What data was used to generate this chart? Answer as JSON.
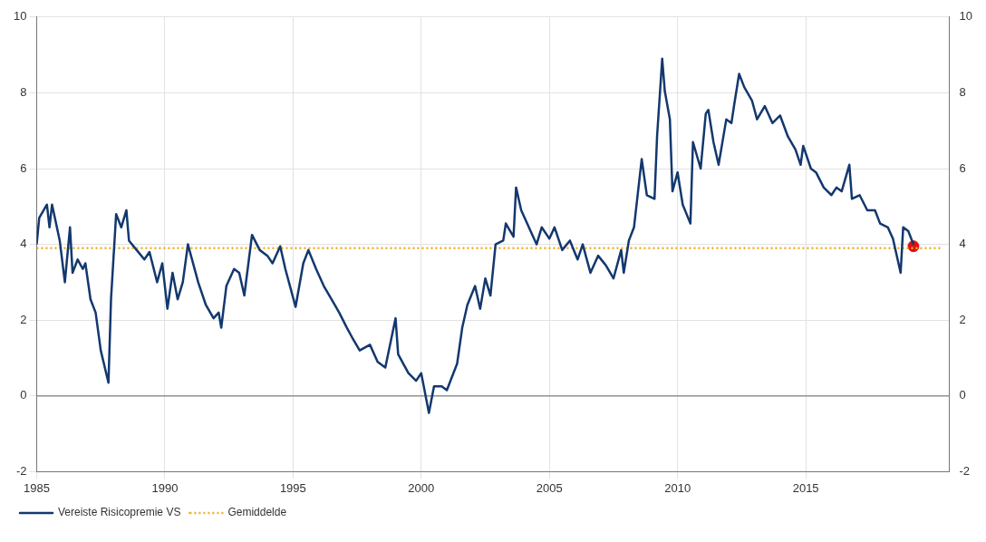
{
  "chart_data": {
    "type": "line",
    "xlim": [
      1985,
      2020.6
    ],
    "xticks": [
      1985,
      1990,
      1995,
      2000,
      2005,
      2010,
      2015
    ],
    "ylim": [
      -2,
      10
    ],
    "yticks": [
      -2,
      0,
      2,
      4,
      6,
      8,
      10
    ],
    "y2lim": [
      -2,
      10
    ],
    "y2ticks": [
      -2,
      0,
      2,
      4,
      6,
      8,
      10
    ],
    "grid": true,
    "legend": "bottom left",
    "ref_lines": [
      {
        "axis": "y",
        "value": 0,
        "color": "#808080"
      }
    ],
    "series": [
      {
        "name": "Vereiste Risicopremie VS",
        "color": "#13386e",
        "line_style": "solid",
        "marker": "none",
        "x": [
          1985.0,
          1985.1,
          1985.4,
          1985.5,
          1985.6,
          1985.9,
          1986.1,
          1986.3,
          1986.4,
          1986.6,
          1986.8,
          1986.9,
          1987.1,
          1987.3,
          1987.5,
          1987.8,
          1987.9,
          1988.1,
          1988.3,
          1988.5,
          1988.6,
          1988.9,
          1989.2,
          1989.4,
          1989.7,
          1989.9,
          1990.1,
          1990.3,
          1990.5,
          1990.7,
          1990.9,
          1991.2,
          1991.3,
          1991.6,
          1991.9,
          1992.1,
          1992.2,
          1992.4,
          1992.7,
          1992.9,
          1993.1,
          1993.4,
          1993.7,
          1994.0,
          1994.2,
          1994.5,
          1994.7,
          1995.1,
          1995.4,
          1995.6,
          1995.9,
          1996.2,
          1996.5,
          1996.8,
          1997.1,
          1997.3,
          1997.6,
          1998.0,
          1998.3,
          1998.6,
          1999.0,
          1999.1,
          1999.5,
          1999.8,
          2000.0,
          2000.3,
          2000.5,
          2000.8,
          2001.0,
          2001.4,
          2001.6,
          2001.8,
          2002.1,
          2002.3,
          2002.5,
          2002.7,
          2002.9,
          2003.2,
          2003.3,
          2003.6,
          2003.7,
          2003.9,
          2004.2,
          2004.5,
          2004.7,
          2005.0,
          2005.2,
          2005.5,
          2005.8,
          2006.1,
          2006.3,
          2006.6,
          2006.9,
          2007.2,
          2007.5,
          2007.8,
          2007.9,
          2008.1,
          2008.3,
          2008.6,
          2008.8,
          2009.1,
          2009.2,
          2009.4,
          2009.5,
          2009.7,
          2009.8,
          2010.0,
          2010.2,
          2010.5,
          2010.6,
          2010.9,
          2011.1,
          2011.2,
          2011.4,
          2011.6,
          2011.9,
          2012.1,
          2012.2,
          2012.4,
          2012.6,
          2012.9,
          2013.1,
          2013.4,
          2013.7,
          2014.0,
          2014.3,
          2014.6,
          2014.8,
          2014.9,
          2015.2,
          2015.4,
          2015.7,
          2016.0,
          2016.2,
          2016.4,
          2016.7,
          2016.8,
          2017.1,
          2017.4,
          2017.7,
          2017.9,
          2018.2,
          2018.4,
          2018.7,
          2018.8,
          2019.0,
          2019.2
        ],
        "values": [
          4.0,
          4.7,
          5.05,
          4.45,
          5.05,
          4.1,
          3.0,
          4.45,
          3.25,
          3.6,
          3.35,
          3.5,
          2.55,
          2.2,
          1.2,
          0.35,
          2.55,
          4.8,
          4.45,
          4.9,
          4.1,
          3.85,
          3.6,
          3.8,
          3.0,
          3.5,
          2.3,
          3.25,
          2.55,
          3.0,
          4.0,
          3.25,
          3.0,
          2.4,
          2.05,
          2.2,
          1.8,
          2.9,
          3.35,
          3.25,
          2.65,
          4.25,
          3.85,
          3.7,
          3.5,
          3.95,
          3.35,
          2.35,
          3.5,
          3.85,
          3.35,
          2.9,
          2.55,
          2.2,
          1.8,
          1.55,
          1.2,
          1.35,
          0.9,
          0.75,
          2.05,
          1.1,
          0.6,
          0.4,
          0.6,
          -0.45,
          0.25,
          0.25,
          0.15,
          0.85,
          1.8,
          2.4,
          2.9,
          2.3,
          3.1,
          2.65,
          4.0,
          4.1,
          4.55,
          4.2,
          5.5,
          4.9,
          4.45,
          4.0,
          4.45,
          4.15,
          4.45,
          3.85,
          4.1,
          3.6,
          4.0,
          3.25,
          3.7,
          3.45,
          3.1,
          3.85,
          3.25,
          4.1,
          4.45,
          6.25,
          5.3,
          5.2,
          6.85,
          8.9,
          8.05,
          7.3,
          5.4,
          5.9,
          5.05,
          4.55,
          6.7,
          6.0,
          7.45,
          7.55,
          6.7,
          6.1,
          7.3,
          7.2,
          7.65,
          8.5,
          8.15,
          7.8,
          7.3,
          7.65,
          7.2,
          7.4,
          6.85,
          6.5,
          6.1,
          6.6,
          6.0,
          5.9,
          5.5,
          5.3,
          5.5,
          5.4,
          6.1,
          5.2,
          5.3,
          4.9,
          4.9,
          4.55,
          4.45,
          4.15,
          3.25,
          4.45,
          4.35,
          4.0
        ]
      },
      {
        "name": "Gemiddelde",
        "color": "#f0b030",
        "line_style": "dotted",
        "marker": "none",
        "x": [
          1985,
          2020.3
        ],
        "values": [
          3.9,
          3.9
        ]
      },
      {
        "type": "scatter",
        "color": "#e01010",
        "marker": "circle",
        "x": [
          2019.2
        ],
        "values": [
          3.95
        ]
      }
    ]
  }
}
